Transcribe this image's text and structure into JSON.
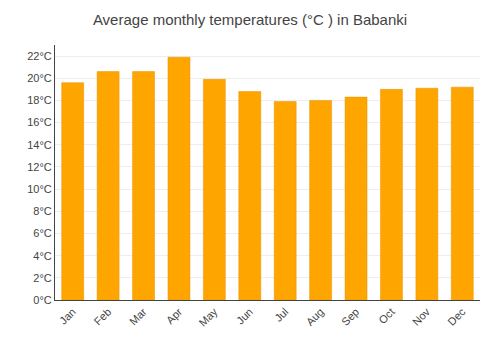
{
  "chart_data": {
    "type": "bar",
    "title": "Average monthly temperatures (°C ) in Babanki",
    "categories": [
      "Jan",
      "Feb",
      "Mar",
      "Apr",
      "May",
      "Jun",
      "Jul",
      "Aug",
      "Sep",
      "Oct",
      "Nov",
      "Dec"
    ],
    "values": [
      19.6,
      20.6,
      20.6,
      21.9,
      19.9,
      18.8,
      17.9,
      18.0,
      18.3,
      19.0,
      19.1,
      19.2
    ],
    "color": "#FFA500",
    "ylim": [
      0,
      23
    ],
    "yticks": [
      {
        "value": 0,
        "label": "0°C"
      },
      {
        "value": 2,
        "label": "2°C"
      },
      {
        "value": 4,
        "label": "4°C"
      },
      {
        "value": 6,
        "label": "6°C"
      },
      {
        "value": 8,
        "label": "8°C"
      },
      {
        "value": 10,
        "label": "10°C"
      },
      {
        "value": 12,
        "label": "12°C"
      },
      {
        "value": 14,
        "label": "14°C"
      },
      {
        "value": 16,
        "label": "16°C"
      },
      {
        "value": 18,
        "label": "18°C"
      },
      {
        "value": 20,
        "label": "20°C"
      },
      {
        "value": 22,
        "label": "22°C"
      }
    ],
    "grid": true
  }
}
